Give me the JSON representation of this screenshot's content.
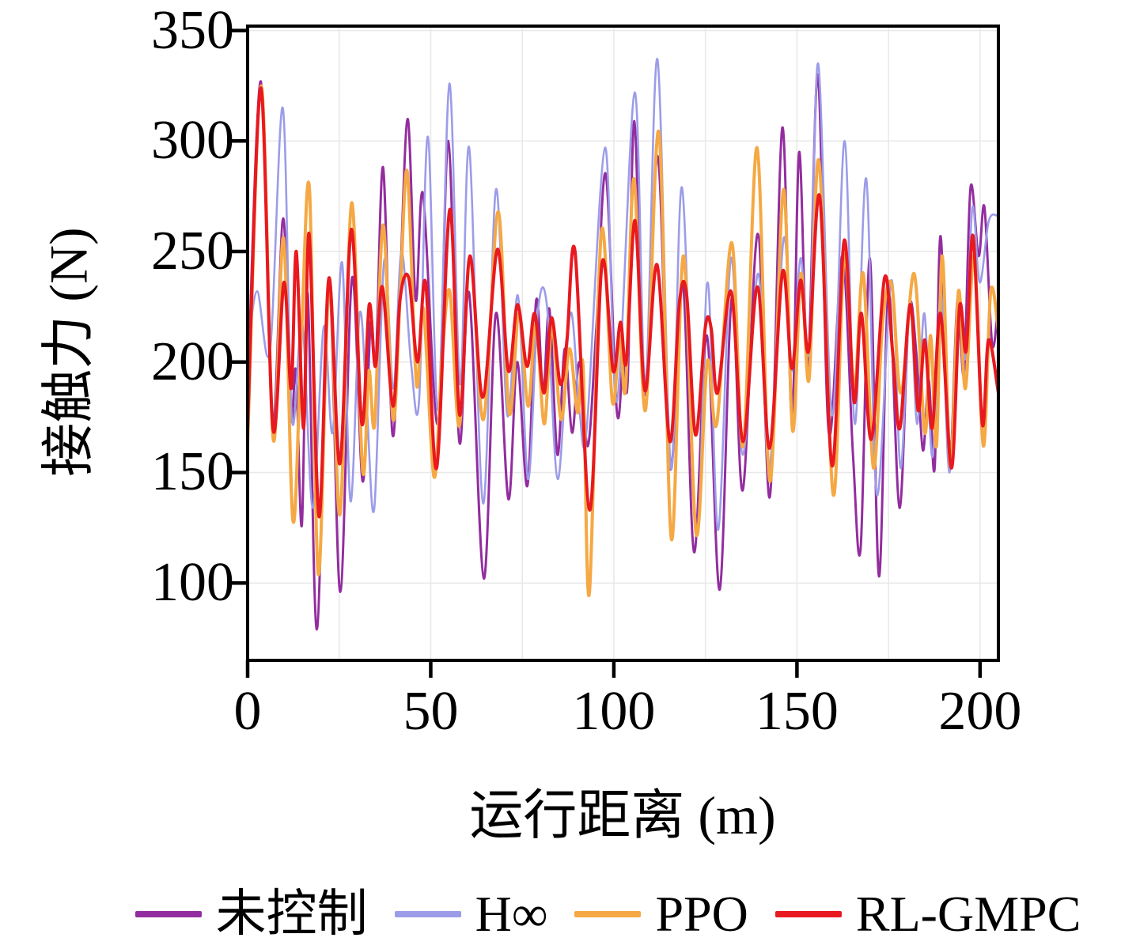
{
  "figure": {
    "background": "#ffffff"
  },
  "chart_data": {
    "type": "line",
    "title": "",
    "xlabel": "运行距离 (m)",
    "ylabel": "接触力 (N)",
    "xlim": [
      0,
      205
    ],
    "ylim": [
      65,
      352
    ],
    "x_ticks": [
      0,
      50,
      100,
      150,
      200
    ],
    "y_ticks": [
      100,
      150,
      200,
      250,
      300,
      350
    ],
    "grid": {
      "show": true,
      "color": "#e8e8e8",
      "x_step": 25,
      "y_step": 50
    },
    "axis_color": "#000000",
    "legend_position": "below",
    "series": [
      {
        "key": "uncontrolled",
        "name": "未控制",
        "color": "#932d9f",
        "width": 3,
        "points": [
          [
            0,
            185
          ],
          [
            3.6,
            327
          ],
          [
            6.8,
            172
          ],
          [
            9.7,
            265
          ],
          [
            11.8,
            175
          ],
          [
            13.2,
            196
          ],
          [
            14.8,
            126
          ],
          [
            16.4,
            231
          ],
          [
            18.9,
            79
          ],
          [
            22.2,
            235
          ],
          [
            25.3,
            96
          ],
          [
            28.5,
            238
          ],
          [
            31.4,
            146
          ],
          [
            33.6,
            218
          ],
          [
            35,
            200
          ],
          [
            37,
            288
          ],
          [
            39.5,
            168
          ],
          [
            41.4,
            225
          ],
          [
            43.7,
            310
          ],
          [
            45.9,
            228
          ],
          [
            47.9,
            276
          ],
          [
            51.9,
            172
          ],
          [
            54.8,
            300
          ],
          [
            57.8,
            164
          ],
          [
            60.5,
            231
          ],
          [
            64.5,
            102
          ],
          [
            67.8,
            222
          ],
          [
            71.2,
            138
          ],
          [
            73.6,
            200
          ],
          [
            76.4,
            144
          ],
          [
            78.8,
            228
          ],
          [
            80.7,
            186
          ],
          [
            82.4,
            224
          ],
          [
            84.6,
            158
          ],
          [
            86.6,
            206
          ],
          [
            88.6,
            168
          ],
          [
            90.6,
            200
          ],
          [
            92.9,
            162
          ],
          [
            95.2,
            215
          ],
          [
            97.8,
            285
          ],
          [
            100.8,
            178
          ],
          [
            102.5,
            200
          ],
          [
            103.8,
            192
          ],
          [
            105.6,
            309
          ],
          [
            108.4,
            185
          ],
          [
            112,
            293
          ],
          [
            115.4,
            152
          ],
          [
            118.8,
            236
          ],
          [
            121.9,
            114
          ],
          [
            125.4,
            212
          ],
          [
            128.9,
            97
          ],
          [
            132.2,
            229
          ],
          [
            135.2,
            142
          ],
          [
            139.3,
            258
          ],
          [
            142.6,
            139
          ],
          [
            146,
            306
          ],
          [
            148.6,
            174
          ],
          [
            150.6,
            295
          ],
          [
            153,
            198
          ],
          [
            155.7,
            330
          ],
          [
            158.7,
            168
          ],
          [
            162.4,
            248
          ],
          [
            165.3,
            158
          ],
          [
            167.4,
            116
          ],
          [
            169.9,
            247
          ],
          [
            172.4,
            103
          ],
          [
            175,
            232
          ],
          [
            178,
            134
          ],
          [
            180.6,
            224
          ],
          [
            182.6,
            204
          ],
          [
            184.4,
            160
          ],
          [
            186,
            192
          ],
          [
            187.6,
            152
          ],
          [
            189.2,
            257
          ],
          [
            191.6,
            152
          ],
          [
            193.8,
            228
          ],
          [
            195.6,
            195
          ],
          [
            197.4,
            279
          ],
          [
            199.6,
            248
          ],
          [
            201.2,
            270
          ],
          [
            203.3,
            208
          ],
          [
            205,
            228
          ]
        ]
      },
      {
        "key": "hinf",
        "name": "H∞",
        "color": "#9c9ce9",
        "width": 2.6,
        "points": [
          [
            0,
            205
          ],
          [
            2.6,
            232
          ],
          [
            6.1,
            205
          ],
          [
            9.6,
            315
          ],
          [
            12.1,
            174
          ],
          [
            14.9,
            218
          ],
          [
            17.8,
            134
          ],
          [
            20.8,
            216
          ],
          [
            23.2,
            168
          ],
          [
            25.8,
            245
          ],
          [
            28.1,
            137
          ],
          [
            30.6,
            222
          ],
          [
            32.6,
            178
          ],
          [
            34.6,
            134
          ],
          [
            37.3,
            246
          ],
          [
            39.8,
            188
          ],
          [
            42,
            250
          ],
          [
            44.6,
            200
          ],
          [
            46.8,
            182
          ],
          [
            49.2,
            302
          ],
          [
            52,
            178
          ],
          [
            55.1,
            326
          ],
          [
            58,
            190
          ],
          [
            60.5,
            297
          ],
          [
            64.3,
            136
          ],
          [
            67.8,
            278
          ],
          [
            70.9,
            176
          ],
          [
            73.8,
            230
          ],
          [
            76.6,
            147
          ],
          [
            79.2,
            222
          ],
          [
            81.7,
            226
          ],
          [
            84.7,
            147
          ],
          [
            88.1,
            222
          ],
          [
            90.6,
            178
          ],
          [
            92.6,
            170
          ],
          [
            97.6,
            297
          ],
          [
            100.8,
            182
          ],
          [
            105.7,
            322
          ],
          [
            108.6,
            190
          ],
          [
            111.9,
            337
          ],
          [
            115.6,
            152
          ],
          [
            118.6,
            279
          ],
          [
            122.6,
            123
          ],
          [
            125.6,
            236
          ],
          [
            128.5,
            124
          ],
          [
            132,
            247
          ],
          [
            135.2,
            158
          ],
          [
            139.4,
            240
          ],
          [
            142.4,
            152
          ],
          [
            146.4,
            256
          ],
          [
            148.6,
            196
          ],
          [
            151,
            247
          ],
          [
            153.4,
            205
          ],
          [
            155.8,
            335
          ],
          [
            159.6,
            176
          ],
          [
            163,
            300
          ],
          [
            165.8,
            172
          ],
          [
            168.9,
            283
          ],
          [
            171.8,
            140
          ],
          [
            175.8,
            237
          ],
          [
            178.3,
            152
          ],
          [
            180.8,
            228
          ],
          [
            182.8,
            172
          ],
          [
            184.8,
            222
          ],
          [
            187,
            157
          ],
          [
            189.3,
            232
          ],
          [
            191.6,
            150
          ],
          [
            194,
            226
          ],
          [
            196,
            202
          ],
          [
            197.9,
            270
          ],
          [
            199.9,
            236
          ],
          [
            202.4,
            264
          ],
          [
            205,
            266
          ]
        ]
      },
      {
        "key": "ppo",
        "name": "PPO",
        "color": "#f5a843",
        "width": 4,
        "points": [
          [
            0,
            163
          ],
          [
            3.7,
            325
          ],
          [
            7,
            165
          ],
          [
            9.8,
            256
          ],
          [
            12.4,
            128
          ],
          [
            14.7,
            212
          ],
          [
            16.9,
            278
          ],
          [
            19.3,
            104
          ],
          [
            22.3,
            236
          ],
          [
            25.2,
            131
          ],
          [
            28.4,
            272
          ],
          [
            31.4,
            151
          ],
          [
            33.1,
            196
          ],
          [
            34.7,
            172
          ],
          [
            37,
            262
          ],
          [
            39.7,
            174
          ],
          [
            41.7,
            232
          ],
          [
            43.6,
            286
          ],
          [
            46.1,
            190
          ],
          [
            48,
            224
          ],
          [
            50.9,
            148
          ],
          [
            53.1,
            202
          ],
          [
            55.2,
            232
          ],
          [
            57.8,
            171
          ],
          [
            60.8,
            247
          ],
          [
            64.4,
            174
          ],
          [
            68.4,
            268
          ],
          [
            71.4,
            177
          ],
          [
            74.1,
            222
          ],
          [
            76.6,
            180
          ],
          [
            78.7,
            218
          ],
          [
            81,
            172
          ],
          [
            83.1,
            216
          ],
          [
            85.6,
            174
          ],
          [
            87.9,
            206
          ],
          [
            90.1,
            177
          ],
          [
            91.6,
            198
          ],
          [
            93.3,
            95
          ],
          [
            96.6,
            259
          ],
          [
            99.6,
            182
          ],
          [
            101.6,
            212
          ],
          [
            103.2,
            188
          ],
          [
            105.5,
            283
          ],
          [
            108.6,
            178
          ],
          [
            112.3,
            304
          ],
          [
            115.7,
            120
          ],
          [
            119,
            248
          ],
          [
            122.5,
            122
          ],
          [
            125.5,
            200
          ],
          [
            128.1,
            172
          ],
          [
            132.2,
            254
          ],
          [
            135.3,
            162
          ],
          [
            139.1,
            297
          ],
          [
            142.6,
            146
          ],
          [
            146.3,
            278
          ],
          [
            148.8,
            169
          ],
          [
            151.1,
            240
          ],
          [
            153.3,
            192
          ],
          [
            156,
            291
          ],
          [
            159.9,
            140
          ],
          [
            162.9,
            248
          ],
          [
            165.6,
            188
          ],
          [
            168.1,
            240
          ],
          [
            170.9,
            152
          ],
          [
            173.4,
            218
          ],
          [
            175.9,
            235
          ],
          [
            178.4,
            186
          ],
          [
            182,
            240
          ],
          [
            184.9,
            168
          ],
          [
            186.5,
            212
          ],
          [
            188.1,
            162
          ],
          [
            189.7,
            248
          ],
          [
            191.9,
            153
          ],
          [
            194.1,
            232
          ],
          [
            196,
            188
          ],
          [
            198.4,
            248
          ],
          [
            200.9,
            162
          ],
          [
            202.9,
            232
          ],
          [
            205,
            214
          ]
        ]
      },
      {
        "key": "rlgmpc",
        "name": "RL-GMPC",
        "color": "#e8191f",
        "width": 4,
        "points": [
          [
            0,
            170
          ],
          [
            3.6,
            324
          ],
          [
            6.9,
            170
          ],
          [
            9.9,
            236
          ],
          [
            11.9,
            188
          ],
          [
            13.3,
            250
          ],
          [
            15.3,
            170
          ],
          [
            16.8,
            258
          ],
          [
            19.5,
            130
          ],
          [
            22.2,
            238
          ],
          [
            25.2,
            154
          ],
          [
            28.3,
            260
          ],
          [
            31.2,
            172
          ],
          [
            33.2,
            226
          ],
          [
            34.9,
            198
          ],
          [
            36.8,
            234
          ],
          [
            39.7,
            180
          ],
          [
            41.6,
            228
          ],
          [
            44,
            238
          ],
          [
            46.4,
            200
          ],
          [
            48.6,
            236
          ],
          [
            51.6,
            152
          ],
          [
            55.2,
            269
          ],
          [
            57.9,
            176
          ],
          [
            60.7,
            248
          ],
          [
            64.2,
            184
          ],
          [
            68.2,
            251
          ],
          [
            71.2,
            196
          ],
          [
            73.7,
            226
          ],
          [
            76.3,
            198
          ],
          [
            78.4,
            222
          ],
          [
            80.9,
            186
          ],
          [
            83,
            220
          ],
          [
            85.4,
            190
          ],
          [
            87.2,
            210
          ],
          [
            89.4,
            250
          ],
          [
            93.4,
            133
          ],
          [
            96.8,
            245
          ],
          [
            99.8,
            196
          ],
          [
            101.8,
            218
          ],
          [
            103.4,
            200
          ],
          [
            105.8,
            264
          ],
          [
            108.5,
            187
          ],
          [
            111.8,
            244
          ],
          [
            115.3,
            164
          ],
          [
            117.9,
            227
          ],
          [
            119.9,
            230
          ],
          [
            122.3,
            167
          ],
          [
            125,
            216
          ],
          [
            126.6,
            215
          ],
          [
            128.3,
            186
          ],
          [
            132,
            232
          ],
          [
            135.3,
            164
          ],
          [
            139.2,
            234
          ],
          [
            142.5,
            161
          ],
          [
            146.1,
            241
          ],
          [
            148.6,
            197
          ],
          [
            151,
            237
          ],
          [
            153.2,
            205
          ],
          [
            156.2,
            275
          ],
          [
            159.6,
            153
          ],
          [
            162.9,
            255
          ],
          [
            165.6,
            182
          ],
          [
            167.6,
            222
          ],
          [
            170.3,
            165
          ],
          [
            173.9,
            238
          ],
          [
            176.1,
            205
          ],
          [
            178.1,
            170
          ],
          [
            180.9,
            226
          ],
          [
            183.1,
            178
          ],
          [
            184.9,
            210
          ],
          [
            186.9,
            170
          ],
          [
            189.2,
            222
          ],
          [
            192.2,
            152
          ],
          [
            194.4,
            225
          ],
          [
            196.2,
            205
          ],
          [
            198.1,
            257
          ],
          [
            200.6,
            172
          ],
          [
            202.3,
            210
          ],
          [
            205,
            186
          ]
        ]
      }
    ]
  }
}
